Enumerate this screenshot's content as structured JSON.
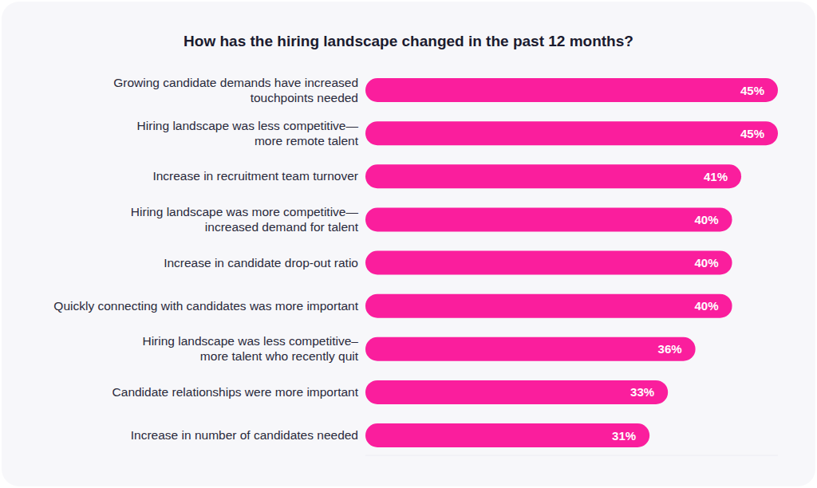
{
  "chart_data": {
    "type": "bar",
    "orientation": "horizontal",
    "title": "How has the hiring landscape changed in the past 12 months?",
    "categories": [
      "Growing candidate demands have increased touchpoints needed",
      "Hiring landscape was less competitive—more remote talent",
      "Increase in recruitment team turnover",
      "Hiring landscape was more competitive—increased demand for talent",
      "Increase in candidate drop-out ratio",
      "Quickly connecting with candidates was more important",
      "Hiring landscape was less competitive–more talent who recently quit",
      "Candidate relationships were more important",
      "Increase in number of candidates needed"
    ],
    "values": [
      45,
      45,
      41,
      40,
      40,
      40,
      36,
      33,
      31
    ],
    "value_labels": [
      "45%",
      "45%",
      "41%",
      "40%",
      "40%",
      "40%",
      "36%",
      "33%",
      "31%"
    ],
    "color": "#fa1e9d",
    "xlim": [
      0,
      45
    ],
    "data_labels": true,
    "tick_labels": false,
    "grid": false
  }
}
